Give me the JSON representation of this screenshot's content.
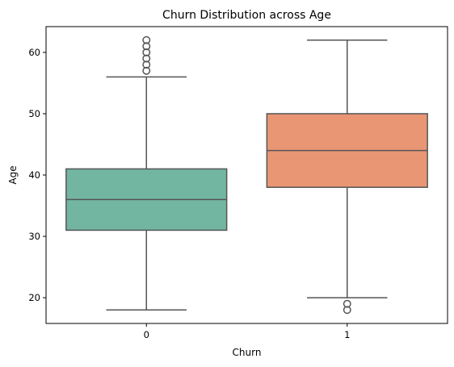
{
  "chart_data": {
    "type": "box",
    "title": "Churn Distribution across Age",
    "xlabel": "Churn",
    "ylabel": "Age",
    "categories": [
      "0",
      "1"
    ],
    "y_ticks": [
      20,
      30,
      40,
      50,
      60
    ],
    "ylim": [
      15.8,
      64.2
    ],
    "grid": false,
    "legend": "none",
    "boxes": [
      {
        "category": "0",
        "whisker_low": 18,
        "q1": 31,
        "median": 36,
        "q3": 41,
        "whisker_high": 56,
        "outliers": [
          57,
          58,
          59,
          60,
          61,
          62
        ],
        "color": "#72b6a1"
      },
      {
        "category": "1",
        "whisker_low": 20,
        "q1": 38,
        "median": 44,
        "q3": 50,
        "whisker_high": 62,
        "outliers": [
          19,
          18
        ],
        "color": "#e99675"
      }
    ],
    "line_color": "#555555"
  }
}
